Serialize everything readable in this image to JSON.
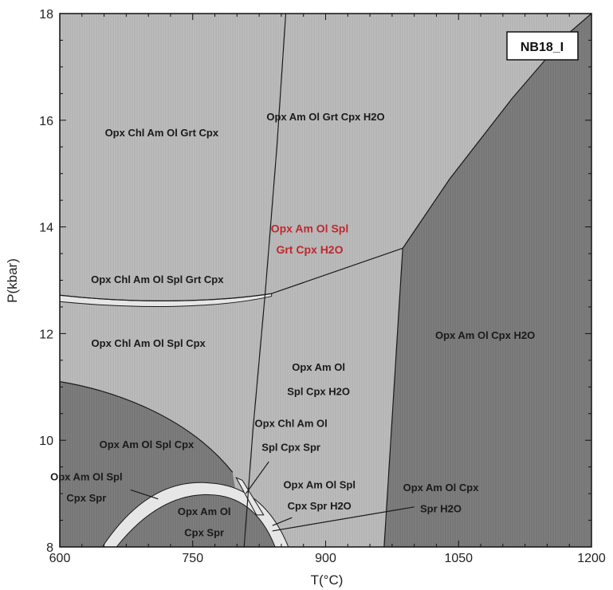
{
  "chart_data": {
    "type": "phase-diagram",
    "sample_label": "NB18_I",
    "xlabel": "T(°C)",
    "ylabel": "P(kbar)",
    "xlim": [
      600,
      1200
    ],
    "ylim": [
      8,
      18
    ],
    "x_ticks": [
      "600",
      "750",
      "900",
      "1050",
      "1200"
    ],
    "y_ticks": [
      "8",
      "10",
      "12",
      "14",
      "16",
      "18"
    ],
    "colors": {
      "light_field": "#bdbdbd",
      "dark_field": "#7f7f7f",
      "thin_field": "#e6e6e6",
      "boundary": "#1a1a1a",
      "highlight_label": "#c0282d"
    },
    "fields": [
      {
        "label": "Opx Am Ol Grt Cpx H2O",
        "T": 900,
        "P": 16.0
      },
      {
        "label": "Opx Chl Am Ol Grt Cpx",
        "T": 715,
        "P": 15.7
      },
      {
        "label": "Opx Am Ol Spl",
        "T": 882,
        "P": 13.9,
        "highlight": true
      },
      {
        "label": "Grt Cpx H2O",
        "T": 882,
        "P": 13.5,
        "highlight": true
      },
      {
        "label": "Opx Chl Am Ol Spl Grt Cpx",
        "T": 710,
        "P": 12.95
      },
      {
        "label": "Opx Chl Am Ol Spl Cpx",
        "T": 700,
        "P": 11.75
      },
      {
        "label": "Opx Am Ol Cpx H2O",
        "T": 1080,
        "P": 11.9
      },
      {
        "label": "Opx Am Ol",
        "T": 892,
        "P": 11.3
      },
      {
        "label": "Spl Cpx H2O",
        "T": 892,
        "P": 10.85
      },
      {
        "label": "Opx Am Ol Spl Cpx",
        "T": 698,
        "P": 9.85
      },
      {
        "label": "Opx Chl Am Ol",
        "T": 861,
        "P": 10.25
      },
      {
        "label": "Spl Cpx Spr",
        "T": 861,
        "P": 9.8
      },
      {
        "label": "Opx Am Ol Spl",
        "T": 630,
        "P": 9.25
      },
      {
        "label": "Cpx Spr",
        "T": 630,
        "P": 8.85
      },
      {
        "label": "Opx Am Ol Spl",
        "T": 893,
        "P": 9.1
      },
      {
        "label": "Cpx Spr H2O",
        "T": 893,
        "P": 8.7
      },
      {
        "label": "Opx Am Ol Cpx",
        "T": 1030,
        "P": 9.05
      },
      {
        "label": "Spr H2O",
        "T": 1030,
        "P": 8.65
      },
      {
        "label": "Opx Am Ol",
        "T": 763,
        "P": 8.6
      },
      {
        "label": "Cpx Spr",
        "T": 763,
        "P": 8.2
      }
    ]
  }
}
